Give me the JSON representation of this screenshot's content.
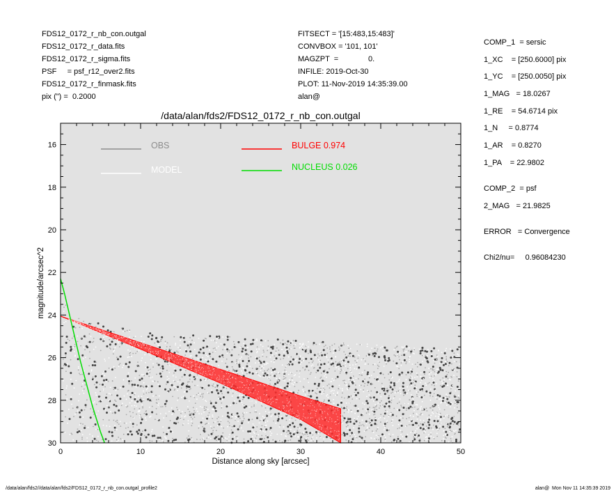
{
  "header_left": [
    "FDS12_0172_r_nb_con.outgal",
    "FDS12_0172_r_data.fits",
    "FDS12_0172_r_sigma.fits",
    "PSF     = psf_r12_over2.fits",
    "FDS12_0172_r_finmask.fits",
    "pix (\") =  0.2000"
  ],
  "header_mid": [
    "FITSECT = '[15:483,15:483]'",
    "CONVBOX = '101, 101'",
    "MAGZPT  =              0.",
    "INFILE: 2019-Oct-30",
    "PLOT: 11-Nov-2019 14:35:39.00",
    "alan@"
  ],
  "header_right": [
    "COMP_1  = sersic",
    "1_XC    = [250.6000] pix",
    "1_YC    = [250.0050] pix",
    "1_MAG   = 18.0267",
    "1_RE    = 54.6714 pix",
    "1_N     = 0.8774",
    "1_AR    = 0.8270",
    "1_PA    = 22.9802",
    "COMP_2  = psf",
    "2_MAG   = 21.9825",
    "ERROR   = Convergence",
    "Chi2/nu=     0.96084230"
  ],
  "footer": {
    "left": "/data/alan/fds2//data/alan/fds2/FDS12_0172_r_nb_con.outgal_profile2",
    "right": "alan@  Mon Nov 11 14:35:39 2019"
  },
  "chart_data": {
    "type": "scatter",
    "title": "/data/alan/fds2/FDS12_0172_r_nb_con.outgal",
    "xlabel": "Distance along sky [arcsec]",
    "ylabel": "magnitude/arcsec^2",
    "xlim": [
      0,
      50
    ],
    "ylim": [
      30,
      15
    ],
    "y_inverted": true,
    "xticks": [
      0,
      10,
      20,
      30,
      40,
      50
    ],
    "yticks": [
      16,
      18,
      20,
      22,
      24,
      26,
      28,
      30
    ],
    "background": "#e2e2e2",
    "legend": [
      {
        "label": "OBS",
        "color": "#8c8c8c"
      },
      {
        "label": "MODEL",
        "color": "#ffffff"
      },
      {
        "label": "BULGE  0.974",
        "color": "#ff0000"
      },
      {
        "label": "NUCLEUS  0.026",
        "color": "#00dd00"
      }
    ],
    "series": [
      {
        "name": "OBS",
        "kind": "scatter",
        "color": "#444444",
        "description_points": [
          [
            0.1,
            22.4
          ],
          [
            0.5,
            22.9
          ],
          [
            1,
            23.6
          ],
          [
            2,
            24.1
          ],
          [
            5,
            24.6
          ],
          [
            10,
            25.4
          ],
          [
            20,
            26.2
          ],
          [
            30,
            26.8
          ],
          [
            40,
            27.1
          ],
          [
            50,
            27.2
          ]
        ]
      },
      {
        "name": "MODEL",
        "kind": "scatter",
        "color": "#ffffff"
      },
      {
        "name": "BULGE  0.974",
        "kind": "band",
        "color": "#ff0000",
        "x": [
          0,
          10,
          20,
          30,
          35
        ],
        "y_upper": [
          24.05,
          25.3,
          26.55,
          27.8,
          28.4
        ],
        "y_lower": [
          24.05,
          25.6,
          27.2,
          28.9,
          30.0
        ]
      },
      {
        "name": "NUCLEUS  0.026",
        "kind": "line",
        "color": "#00dd00",
        "x": [
          0,
          0.5,
          1,
          1.5,
          2,
          2.5,
          3,
          3.5,
          4,
          4.5,
          5,
          5.5
        ],
        "y": [
          22.3,
          23.0,
          23.8,
          24.6,
          25.4,
          26.2,
          26.9,
          27.6,
          28.3,
          28.9,
          29.5,
          30.0
        ]
      }
    ]
  }
}
